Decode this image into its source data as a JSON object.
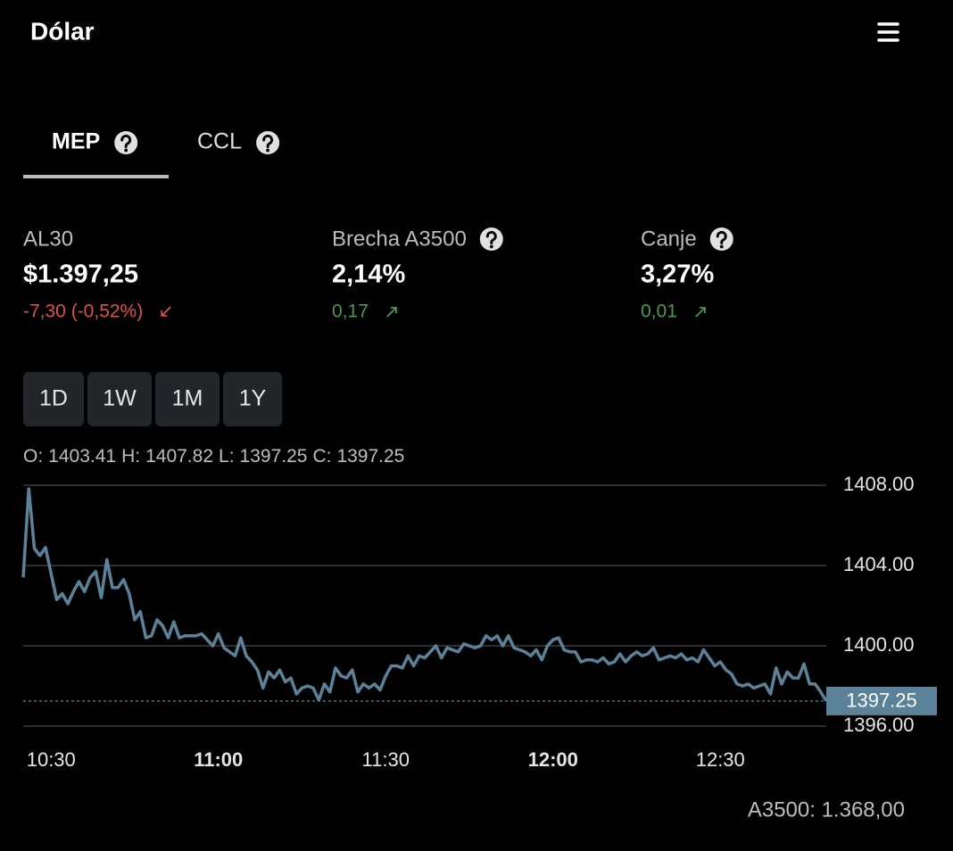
{
  "header": {
    "title": "Dólar"
  },
  "tabs": [
    {
      "label": "MEP",
      "active": true,
      "help": true
    },
    {
      "label": "CCL",
      "active": false,
      "help": true
    }
  ],
  "stats": [
    {
      "label": "AL30",
      "value": "$1.397,25",
      "change": "-7,30 (-0,52%)",
      "trend": "down",
      "help": false
    },
    {
      "label": "Brecha A3500",
      "value": "2,14%",
      "change": "0,17",
      "trend": "up",
      "help": true
    },
    {
      "label": "Canje",
      "value": "3,27%",
      "change": "0,01",
      "trend": "up",
      "help": true
    }
  ],
  "ranges": [
    "1D",
    "1W",
    "1M",
    "1Y"
  ],
  "ohlc": [
    {
      "label": "O:",
      "value": "1403.41"
    },
    {
      "label": "H:",
      "value": "1407.82"
    },
    {
      "label": "L:",
      "value": "1397.25"
    },
    {
      "label": "C:",
      "value": "1397.25"
    }
  ],
  "chart_data": {
    "type": "line",
    "color": "#5b8299",
    "grid": true,
    "x": [
      "10:25",
      "10:26",
      "10:27",
      "10:28",
      "10:29",
      "10:30",
      "10:31",
      "10:32",
      "10:33",
      "10:34",
      "10:35",
      "10:36",
      "10:37",
      "10:38",
      "10:39",
      "10:40",
      "10:41",
      "10:42",
      "10:43",
      "10:44",
      "10:45",
      "10:46",
      "10:47",
      "10:48",
      "10:49",
      "10:50",
      "10:51",
      "10:52",
      "10:53",
      "10:54",
      "10:55",
      "10:56",
      "10:57",
      "10:58",
      "10:59",
      "11:00",
      "11:01",
      "11:02",
      "11:03",
      "11:04",
      "11:05",
      "11:06",
      "11:07",
      "11:08",
      "11:09",
      "11:10",
      "11:11",
      "11:12",
      "11:13",
      "11:14",
      "11:15",
      "11:16",
      "11:17",
      "11:18",
      "11:19",
      "11:20",
      "11:21",
      "11:22",
      "11:23",
      "11:24",
      "11:25",
      "11:26",
      "11:27",
      "11:28",
      "11:29",
      "11:30",
      "11:31",
      "11:32",
      "11:33",
      "11:34",
      "11:35",
      "11:36",
      "11:37",
      "11:38",
      "11:39",
      "11:40",
      "11:41",
      "11:42",
      "11:43",
      "11:44",
      "11:45",
      "11:46",
      "11:47",
      "11:48",
      "11:49",
      "11:50",
      "11:51",
      "11:52",
      "11:53",
      "11:54",
      "11:55",
      "11:56",
      "11:57",
      "11:58",
      "11:59",
      "12:00",
      "12:01",
      "12:02",
      "12:03",
      "12:04",
      "12:05",
      "12:06",
      "12:07",
      "12:08",
      "12:09",
      "12:10",
      "12:11",
      "12:12",
      "12:13",
      "12:14",
      "12:15",
      "12:16",
      "12:17",
      "12:18",
      "12:19",
      "12:20",
      "12:21",
      "12:22",
      "12:23",
      "12:24",
      "12:25",
      "12:26",
      "12:27",
      "12:28",
      "12:29",
      "12:30",
      "12:31",
      "12:32",
      "12:33",
      "12:34",
      "12:35",
      "12:36",
      "12:37",
      "12:38",
      "12:39",
      "12:40",
      "12:41",
      "12:42",
      "12:43",
      "12:44",
      "12:45",
      "12:46",
      "12:47",
      "12:48",
      "12:49"
    ],
    "values": [
      1403.41,
      1407.82,
      1404.85,
      1404.5,
      1404.9,
      1403.6,
      1402.3,
      1402.6,
      1402.1,
      1402.7,
      1403.2,
      1402.7,
      1403.4,
      1403.7,
      1402.4,
      1404.3,
      1402.9,
      1402.9,
      1403.3,
      1402.6,
      1401.3,
      1401.7,
      1400.4,
      1400.5,
      1401.3,
      1401.0,
      1400.4,
      1401.2,
      1400.4,
      1400.5,
      1400.5,
      1400.5,
      1400.6,
      1400.3,
      1400.0,
      1400.6,
      1399.9,
      1399.7,
      1399.5,
      1400.4,
      1399.5,
      1399.2,
      1398.8,
      1397.9,
      1398.7,
      1398.4,
      1398.8,
      1398.2,
      1398.4,
      1397.6,
      1397.9,
      1398.0,
      1397.9,
      1397.3,
      1398.1,
      1397.7,
      1398.9,
      1398.5,
      1398.4,
      1398.8,
      1397.7,
      1398.1,
      1397.9,
      1398.1,
      1397.8,
      1398.5,
      1399.0,
      1399.0,
      1398.9,
      1399.5,
      1399.0,
      1399.5,
      1399.4,
      1399.7,
      1400.0,
      1399.4,
      1399.9,
      1399.8,
      1399.7,
      1400.1,
      1400.0,
      1399.9,
      1400.0,
      1400.5,
      1400.3,
      1400.5,
      1400.0,
      1400.5,
      1399.9,
      1399.8,
      1399.7,
      1399.5,
      1399.8,
      1399.3,
      1400.0,
      1400.3,
      1400.4,
      1399.8,
      1399.7,
      1399.7,
      1399.2,
      1399.3,
      1399.3,
      1399.2,
      1399.4,
      1399.1,
      1399.2,
      1399.6,
      1399.2,
      1399.5,
      1399.7,
      1399.5,
      1399.6,
      1399.9,
      1399.3,
      1399.4,
      1399.5,
      1399.4,
      1399.6,
      1399.3,
      1399.4,
      1399.2,
      1399.8,
      1399.4,
      1399.0,
      1399.2,
      1398.8,
      1398.6,
      1398.1,
      1398.0,
      1398.1,
      1397.9,
      1398.0,
      1398.1,
      1397.6,
      1398.9,
      1398.1,
      1398.7,
      1398.4,
      1398.4,
      1399.1,
      1398.1,
      1398.1,
      1397.7,
      1397.25
    ],
    "xlim": [
      "10:25",
      "12:49"
    ],
    "xticks": [
      "10:30",
      "11:00",
      "11:30",
      "12:00",
      "12:30"
    ],
    "ylim": [
      1396,
      1408
    ],
    "yticks": [
      {
        "value": 1396,
        "label": "1396.00"
      },
      {
        "value": 1400,
        "label": "1400.00"
      },
      {
        "value": 1404,
        "label": "1404.00"
      },
      {
        "value": 1408,
        "label": "1408.00"
      }
    ],
    "price_line": {
      "value": 1397.25,
      "label": "1397.25"
    }
  },
  "footer": "A3500: 1.368,00"
}
